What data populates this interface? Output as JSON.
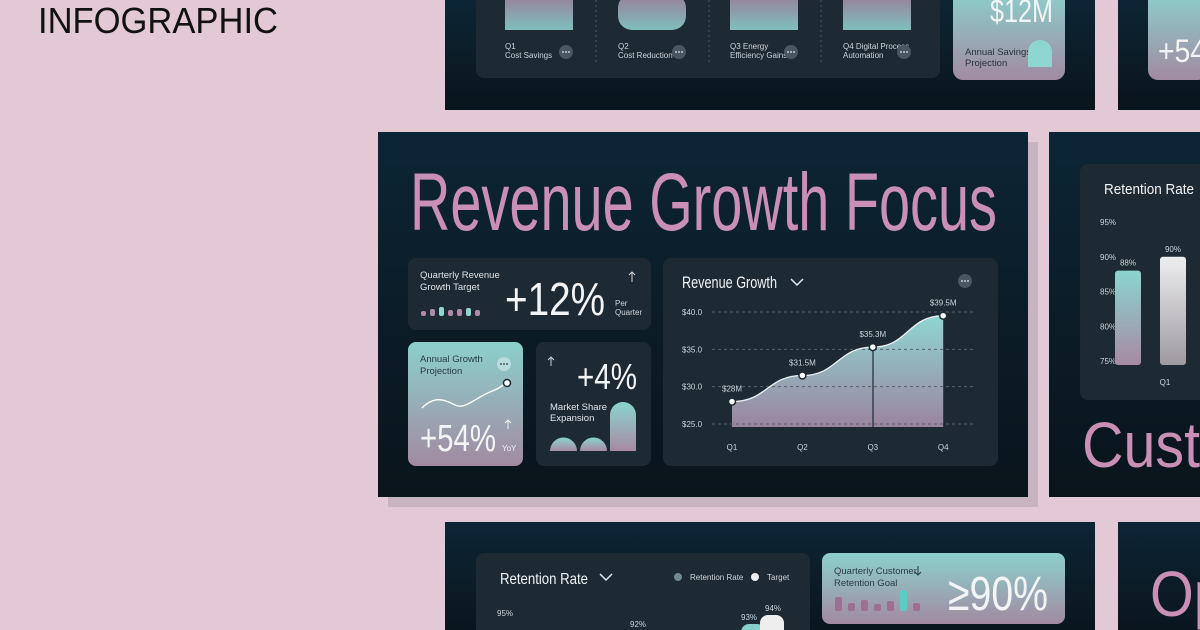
{
  "header": {
    "title": "INFOGRAPHIC"
  },
  "top_slide": {
    "items": [
      {
        "label1": "Q1",
        "label2": "Cost Savings"
      },
      {
        "label1": "Q2",
        "label2": "Cost Reduction"
      },
      {
        "label1": "Q3 Energy",
        "label2": "Efficiency Gains"
      },
      {
        "label1": "Q4 Digital Process",
        "label2": "Automation"
      }
    ],
    "savings": {
      "value": "$12M",
      "label1": "Annual Savings",
      "label2": "Projection"
    }
  },
  "top_right_slide": {
    "value": "+54"
  },
  "main_slide": {
    "title": "Revenue Growth Focus",
    "growth_target": {
      "label1": "Quarterly Revenue",
      "label2": "Growth Target",
      "value": "+12%",
      "unit1": "Per",
      "unit2": "Quarter"
    },
    "annual_projection": {
      "label1": "Annual Growth",
      "label2": "Projection",
      "value": "+54%",
      "unit": "YoY"
    },
    "market_share": {
      "value": "+4%",
      "label1": "Market Share",
      "label2": "Expansion"
    },
    "chart_data": {
      "type": "line",
      "title": "Revenue Growth",
      "categories": [
        "Q1",
        "Q2",
        "Q3",
        "Q4"
      ],
      "values": [
        28,
        31.5,
        35.3,
        39.5
      ],
      "value_labels": [
        "$28M",
        "$31.5M",
        "$35.3M",
        "$39.5M"
      ],
      "ylim": [
        25,
        40
      ],
      "yticks": [
        {
          "value": 25,
          "label": "$25.0"
        },
        {
          "value": 30,
          "label": "$30.0"
        },
        {
          "value": 35,
          "label": "$35.0"
        },
        {
          "value": 40,
          "label": "$40.0"
        }
      ],
      "grid": true,
      "color": "#8fd6d2"
    }
  },
  "right_slide": {
    "chart_data": {
      "type": "bar",
      "title": "Retention Rate",
      "categories": [
        "Q1"
      ],
      "series": [
        {
          "color": "#86d0cc",
          "values": [
            88
          ],
          "value_labels": [
            "88%"
          ]
        },
        {
          "color": "#e4e4e6",
          "values": [
            90
          ],
          "value_labels": [
            "90%"
          ]
        }
      ],
      "ylim": [
        75,
        95
      ],
      "yticks": [
        {
          "value": 75,
          "label": "75%"
        },
        {
          "value": 80,
          "label": "80%"
        },
        {
          "value": 85,
          "label": "85%"
        },
        {
          "value": 90,
          "label": "90%"
        },
        {
          "value": 95,
          "label": "95%"
        }
      ]
    },
    "partial_title": "Custo"
  },
  "bottom_slide": {
    "title": "Retention Rate",
    "legend": [
      "Retention Rate",
      "Target"
    ],
    "tick_label": "95%",
    "labels": [
      "92%",
      "93%",
      "94%"
    ],
    "goal": {
      "label1": "Quarterly Customer",
      "label2": "Retention Goal",
      "value": "≥90%"
    }
  },
  "bottom_right_slide": {
    "partial_title": "Op"
  }
}
